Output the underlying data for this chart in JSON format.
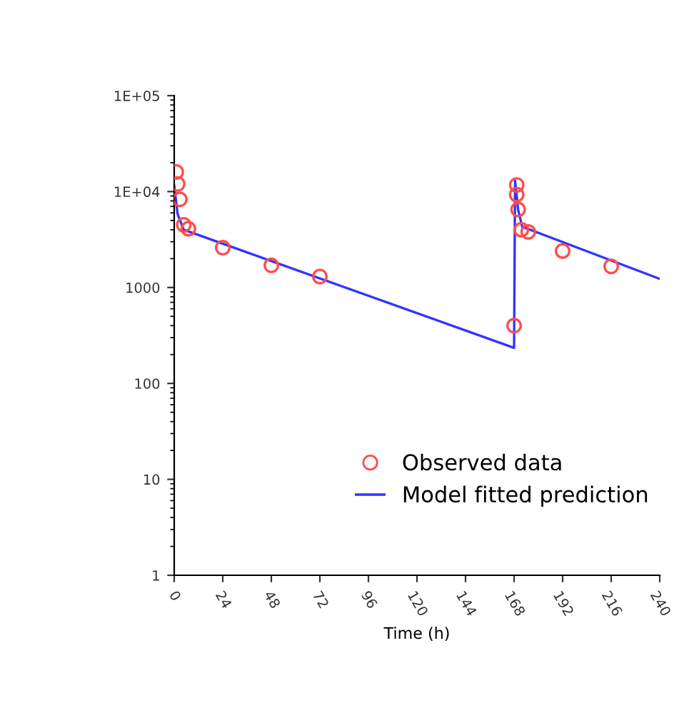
{
  "chart_data": {
    "type": "scatter",
    "xlabel": "Time (h)",
    "log": "y",
    "grid": false,
    "legend": "bottom right",
    "xlim": [
      0,
      240
    ],
    "xticks": [
      0,
      24,
      48,
      72,
      96,
      120,
      144,
      168,
      192,
      216,
      240
    ],
    "ylim": [
      1,
      100000
    ],
    "yticks": [
      {
        "value": 1,
        "label": "1"
      },
      {
        "value": 10,
        "label": "10"
      },
      {
        "value": 100,
        "label": "100"
      },
      {
        "value": 1000,
        "label": "1000"
      },
      {
        "value": 10000,
        "label": "1E+04"
      },
      {
        "value": 100000,
        "label": "1E+05"
      }
    ],
    "series": [
      {
        "name": "Observed data",
        "color": "#ff4d4d",
        "marker": "circle",
        "x": [
          1,
          1.7,
          2.8,
          4.7,
          7,
          24,
          48,
          72,
          168,
          169.3,
          169.3,
          170,
          171.6,
          175,
          192,
          216
        ],
        "values": [
          16000,
          12000,
          8300,
          4500,
          4100,
          2600,
          1700,
          1300,
          400,
          11700,
          9300,
          6500,
          4000,
          3800,
          2400,
          1660
        ]
      },
      {
        "name": "Model fitted prediction",
        "type": "line",
        "color": "#3333ff",
        "marker": "none",
        "line_style": "solid",
        "x": [
          0,
          1.7,
          4.7,
          168,
          168.5,
          170,
          172,
          240
        ],
        "values": [
          11500,
          5800,
          4000,
          235,
          13000,
          6500,
          4300,
          1230
        ]
      }
    ]
  }
}
